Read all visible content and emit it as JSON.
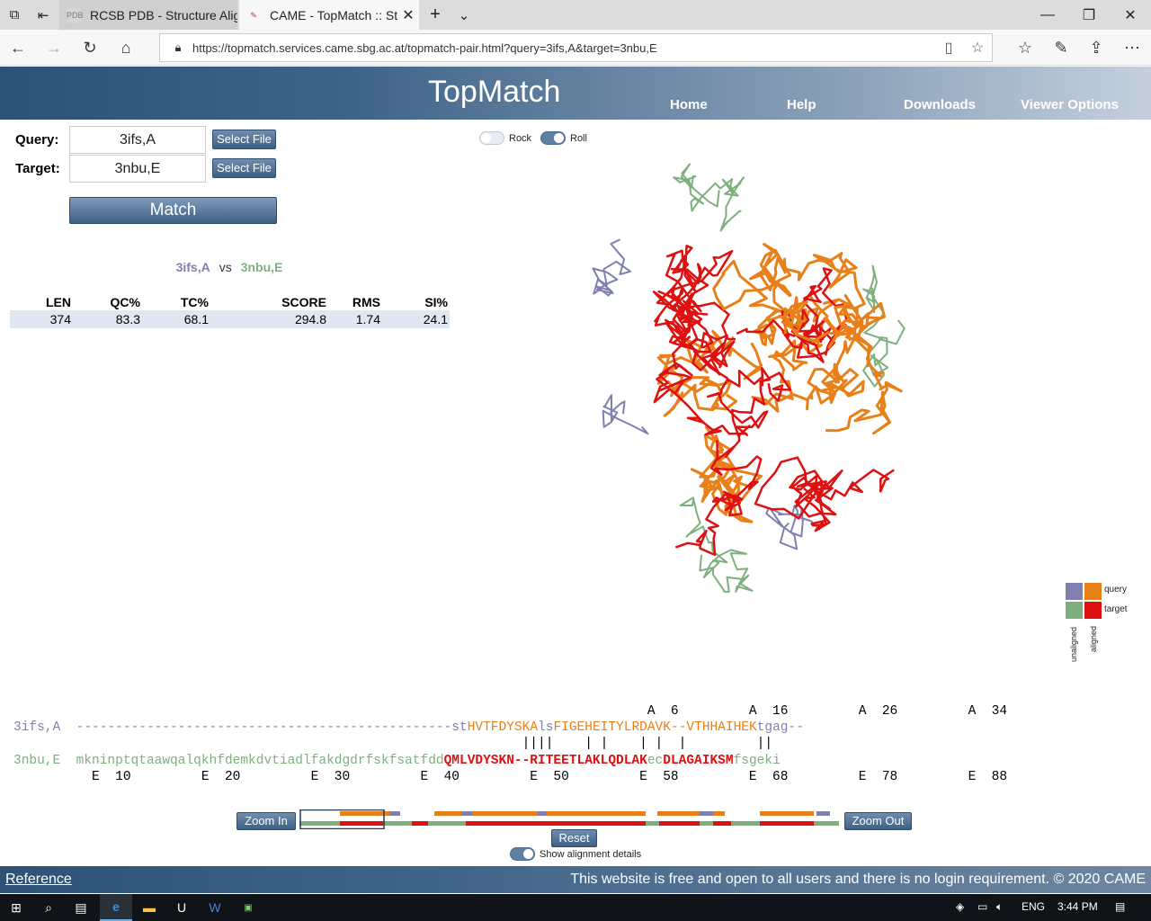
{
  "browser": {
    "tabs": [
      {
        "title": "RCSB PDB - Structure Alignm",
        "favicon": "PDB"
      },
      {
        "title": "CAME - TopMatch :: Stru",
        "favicon": "✎"
      }
    ],
    "url": "https://topmatch.services.came.sbg.ac.at/topmatch-pair.html?query=3ifs,A&target=3nbu,E"
  },
  "header": {
    "brand": "TopMatch",
    "nav": [
      "Home",
      "Help",
      "Downloads",
      "Viewer Options"
    ]
  },
  "form": {
    "query_label": "Query:",
    "query_value": "3ifs,A",
    "target_label": "Target:",
    "target_value": "3nbu,E",
    "select_file": "Select File",
    "match": "Match"
  },
  "comparison": {
    "query": "3ifs,A",
    "vs": "vs",
    "target": "3nbu,E"
  },
  "stats": {
    "headers": [
      "LEN",
      "QC%",
      "TC%",
      "SCORE",
      "RMS",
      "SI%"
    ],
    "values": [
      "374",
      "83.3",
      "68.1",
      "294.8",
      "1.74",
      "24.1"
    ]
  },
  "viewer": {
    "rock": "Rock",
    "roll": "Roll",
    "rock_on": false,
    "roll_on": true
  },
  "legend": {
    "query": "query",
    "target": "target",
    "unaligned": "unaligned",
    "aligned": "aligned",
    "colors": {
      "query_unaligned": "#8080b0",
      "query_aligned": "#e8801a",
      "target_unaligned": "#7eb07e",
      "target_aligned": "#dd1111"
    }
  },
  "alignment": {
    "query_pos": "                                                                                 A  6         A  16         A  26         A  34",
    "query_label": "3ifs,A",
    "query_seq": [
      [
        "qu",
        "------------------------------------------------st"
      ],
      [
        "qa",
        "HVTFDYSKA"
      ],
      [
        "qu",
        "ls"
      ],
      [
        "qa",
        "FIGEHEITYLRDAVK--VTHHAIHEK"
      ],
      [
        "qu",
        "tgag--"
      ]
    ],
    "match_line": "                                                                 ||||    | |    | |  |         ||",
    "target_label": "3nbu,E",
    "target_seq": [
      [
        "tu",
        "mkninptqtaawqalqkhfdemkdvtiadlfakdgdrfskfsatfdd"
      ],
      [
        "ta",
        "QMLVDYSKN--RITEETLAKLQDLAK"
      ],
      [
        "tu",
        "ec"
      ],
      [
        "ta",
        "DLAGAIKSM"
      ],
      [
        "tu",
        "fsgeki"
      ]
    ],
    "target_pos": "          E  10         E  20         E  30         E  40         E  50         E  58         E  68         E  78         E  88"
  },
  "controls": {
    "zoom_in": "Zoom In",
    "zoom_out": "Zoom Out",
    "reset": "Reset",
    "show_details": "Show alignment details",
    "show_details_on": true
  },
  "footer": {
    "reference": "Reference",
    "note": "This website is free and open to all users and there is no login requirement. © 2020 CAME"
  },
  "taskbar": {
    "lang": "ENG",
    "time": "3:44 PM"
  }
}
